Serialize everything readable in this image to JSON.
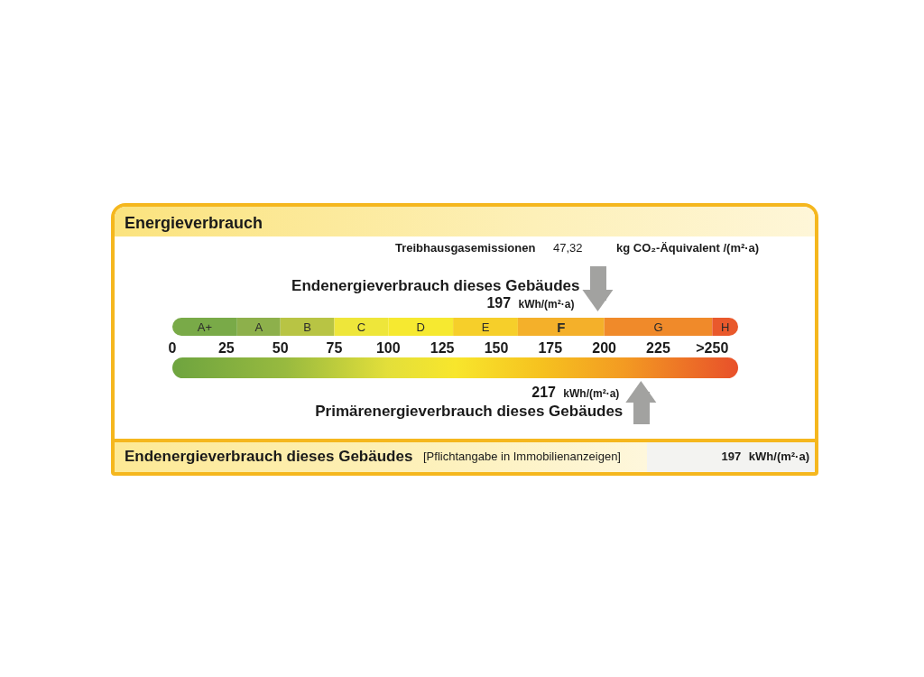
{
  "chart_data": {
    "type": "bar",
    "orientation": "horizontal",
    "stacked": true,
    "title": "Energieverbrauch",
    "categories": [
      null
    ],
    "series": [
      {
        "name": "A+",
        "color": "#79aa48",
        "values": [
          30
        ]
      },
      {
        "name": "A",
        "color": "#8db04b",
        "values": [
          20
        ]
      },
      {
        "name": "B",
        "color": "#b8c444",
        "values": [
          25
        ]
      },
      {
        "name": "C",
        "color": "#eee63a",
        "values": [
          25
        ]
      },
      {
        "name": "D",
        "color": "#f6e930",
        "values": [
          30
        ]
      },
      {
        "name": "E",
        "color": "#f6cf2a",
        "values": [
          30
        ]
      },
      {
        "name": "F",
        "color": "#f4b02a",
        "values": [
          40
        ]
      },
      {
        "name": "G",
        "color": "#f08a2a",
        "values": [
          50
        ]
      },
      {
        "name": "H",
        "color": "#e9592c",
        "values": [
          12
        ]
      }
    ],
    "xlim": [
      0,
      262
    ],
    "xticks": [
      0,
      25,
      50,
      75,
      100,
      125,
      150,
      175,
      200,
      225,
      {
        "value": 250,
        "label": ">250"
      }
    ],
    "ref_lines": [
      {
        "axis": "x",
        "value": 197,
        "label": "Endenergieverbrauch dieses Gebäudes",
        "color": "#a2a2a0"
      },
      {
        "axis": "x",
        "value": 217,
        "label": "Primärenergieverbrauch dieses Gebäudes",
        "color": "#a2a2a0"
      }
    ],
    "annotations": [
      "Treibhausgasemissionen",
      "47,32",
      "kg CO₂-Äquivalent /(m²·a)",
      "197 kWh/(m²·a)",
      "217 kWh/(m²·a)",
      "Endenergieverbrauch dieses Gebäudes",
      "[Pflichtangabe in Immobilienanzeigen]",
      "197 kWh/(m²·a)"
    ]
  }
}
